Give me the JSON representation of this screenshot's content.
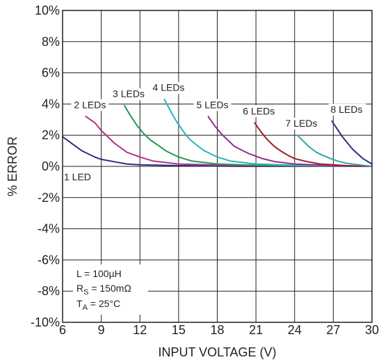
{
  "chart_data": {
    "type": "line",
    "title": "",
    "xlabel": "INPUT VOLTAGE (V)",
    "ylabel": "% ERROR",
    "xlim": [
      6,
      30
    ],
    "ylim": [
      -10,
      10
    ],
    "x_ticks": [
      "6",
      "9",
      "12",
      "15",
      "18",
      "21",
      "24",
      "27",
      "30"
    ],
    "y_ticks": [
      "10%",
      "8%",
      "6%",
      "4%",
      "2%",
      "0%",
      "-2%",
      "-4%",
      "-6%",
      "-8%",
      "-10%"
    ],
    "grid": true,
    "conditions": {
      "inductance": {
        "prefix": "L = ",
        "value": "100µH"
      },
      "resistance": {
        "base": "R",
        "sub": "S",
        "rest": " = 150mΩ"
      },
      "temperature": {
        "base": "T",
        "sub": "A",
        "rest": " = 25°C"
      }
    },
    "series": [
      {
        "name": "1 LED",
        "color": "#2e2e7a",
        "label_pos": "below",
        "x": [
          6.0,
          6.5,
          7.0,
          7.5,
          8.0,
          8.5,
          9.0,
          10.0,
          11.0,
          12.0,
          15.0,
          20.0,
          25.0,
          30.0
        ],
        "y": [
          1.9,
          1.6,
          1.3,
          1.0,
          0.8,
          0.6,
          0.45,
          0.3,
          0.15,
          0.1,
          0.05,
          0.0,
          0.0,
          0.0
        ]
      },
      {
        "name": "2 LEDs",
        "color": "#b0338a",
        "label_pos": "above",
        "x": [
          7.8,
          8.5,
          9.0,
          9.5,
          10.0,
          10.5,
          11.0,
          12.0,
          13.0,
          15.0,
          20.0,
          25.0,
          30.0
        ],
        "y": [
          3.2,
          2.8,
          2.3,
          1.9,
          1.5,
          1.2,
          0.9,
          0.6,
          0.35,
          0.15,
          0.05,
          0.0,
          0.0
        ]
      },
      {
        "name": "3 LEDs",
        "color": "#1f9a50",
        "label_pos": "above",
        "x": [
          10.8,
          11.3,
          11.8,
          12.3,
          12.8,
          13.5,
          14.0,
          15.0,
          16.0,
          18.0,
          22.0,
          30.0
        ],
        "y": [
          3.9,
          3.2,
          2.6,
          2.1,
          1.7,
          1.3,
          1.0,
          0.6,
          0.35,
          0.15,
          0.05,
          0.0
        ]
      },
      {
        "name": "4 LEDs",
        "color": "#2ab1bf",
        "label_pos": "above",
        "x": [
          13.9,
          14.4,
          14.9,
          15.4,
          15.9,
          16.5,
          17.0,
          18.0,
          19.0,
          21.0,
          25.0,
          30.0
        ],
        "y": [
          4.3,
          3.5,
          2.8,
          2.2,
          1.7,
          1.3,
          1.0,
          0.6,
          0.35,
          0.15,
          0.05,
          0.0
        ]
      },
      {
        "name": "5 LEDs",
        "color": "#9a2a8e",
        "label_pos": "above",
        "x": [
          17.3,
          17.8,
          18.3,
          18.8,
          19.3,
          20.0,
          20.5,
          21.5,
          22.5,
          24.0,
          27.0,
          30.0
        ],
        "y": [
          3.2,
          2.6,
          2.1,
          1.7,
          1.3,
          1.0,
          0.8,
          0.5,
          0.3,
          0.15,
          0.05,
          0.0
        ]
      },
      {
        "name": "6 LEDs",
        "color": "#9e2024",
        "label_pos": "above",
        "x": [
          20.9,
          21.4,
          21.9,
          22.4,
          22.9,
          23.5,
          24.0,
          25.0,
          26.0,
          28.0,
          30.0
        ],
        "y": [
          2.8,
          2.2,
          1.7,
          1.3,
          1.0,
          0.7,
          0.5,
          0.3,
          0.15,
          0.05,
          0.0
        ]
      },
      {
        "name": "7 LEDs",
        "color": "#33a6a6",
        "label_pos": "above",
        "x": [
          24.2,
          24.7,
          25.2,
          25.7,
          26.2,
          26.8,
          27.3,
          28.0,
          29.0,
          30.0
        ],
        "y": [
          2.0,
          1.6,
          1.2,
          0.9,
          0.7,
          0.5,
          0.35,
          0.2,
          0.1,
          0.0
        ]
      },
      {
        "name": "8 LEDs",
        "color": "#2e2e7a",
        "label_pos": "above",
        "x": [
          26.9,
          27.3,
          27.7,
          28.1,
          28.5,
          28.9,
          29.3,
          29.7,
          30.0
        ],
        "y": [
          2.9,
          2.4,
          1.9,
          1.5,
          1.1,
          0.8,
          0.5,
          0.3,
          0.15
        ]
      }
    ]
  }
}
